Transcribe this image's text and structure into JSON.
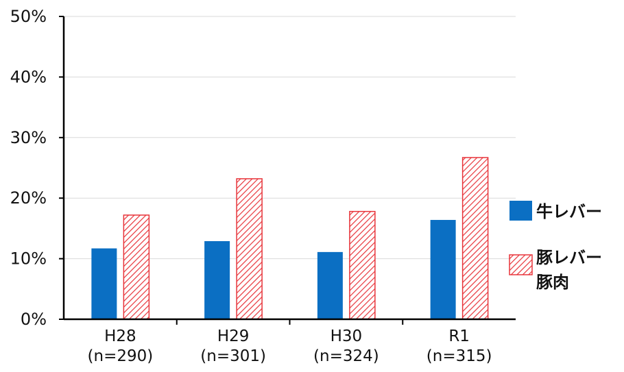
{
  "chart_data": {
    "type": "bar",
    "title": "",
    "xlabel": "",
    "ylabel": "",
    "ylim": [
      0,
      50
    ],
    "yticks": [
      "0%",
      "10%",
      "20%",
      "30%",
      "40%",
      "50%"
    ],
    "ytick_values": [
      0,
      10,
      20,
      30,
      40,
      50
    ],
    "grid": true,
    "legend_position": "right",
    "categories": [
      {
        "line1": "H28",
        "line2": "(n=290)"
      },
      {
        "line1": "H29",
        "line2": "(n=301)"
      },
      {
        "line1": "H30",
        "line2": "(n=324)"
      },
      {
        "line1": "R1",
        "line2": "(n=315)"
      }
    ],
    "series": [
      {
        "name": "牛レバー",
        "color": "#0b6fc3",
        "pattern": "solid",
        "values": [
          11.7,
          12.9,
          11.1,
          16.4
        ]
      },
      {
        "name_lines": [
          "豚レバー",
          "豚肉"
        ],
        "color": "#e8343a",
        "pattern": "diagonal-hatch",
        "values": [
          17.2,
          23.2,
          17.8,
          26.7
        ]
      }
    ]
  }
}
